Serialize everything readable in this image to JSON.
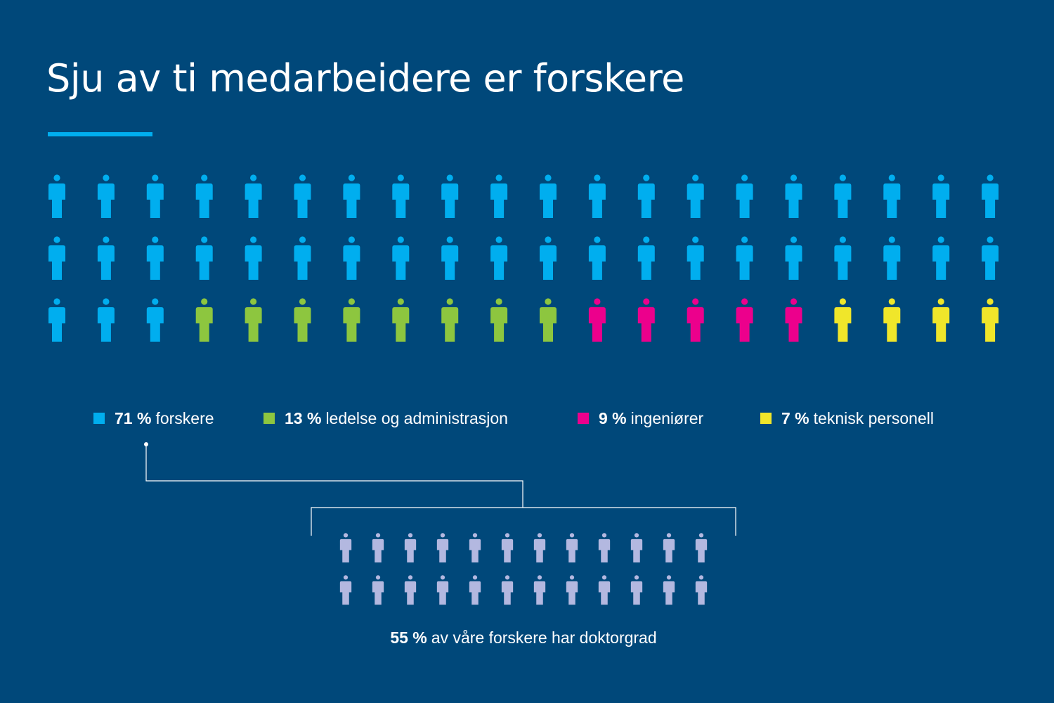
{
  "title": "Sju av ti medarbeidere er forskere",
  "chart_data": [
    {
      "type": "pictogram",
      "title": "Sju av ti medarbeidere er forskere",
      "total_icons": 60,
      "rows": 3,
      "icons_per_row": 20,
      "series": [
        {
          "name": "forskere",
          "value": 71,
          "unit": "%",
          "icons": 43,
          "color": "#00aeef"
        },
        {
          "name": "ledelse og administrasjon",
          "value": 13,
          "unit": "%",
          "icons": 8,
          "color": "#8dc63f"
        },
        {
          "name": "ingeniører",
          "value": 9,
          "unit": "%",
          "icons": 5,
          "color": "#ec008c"
        },
        {
          "name": "teknisk personell",
          "value": 7,
          "unit": "%",
          "icons": 4,
          "color": "#f0e62a"
        }
      ]
    },
    {
      "type": "pictogram",
      "total_icons": 24,
      "rows": 2,
      "icons_per_row": 12,
      "value": 55,
      "unit": "%",
      "color": "#b3b8e0"
    }
  ],
  "legend": [
    {
      "value": "71 %",
      "label": "forskere",
      "color": "#00aeef"
    },
    {
      "value": "13 %",
      "label": "ledelse og administrasjon",
      "color": "#8dc63f"
    },
    {
      "value": "9 %",
      "label": "ingeniører",
      "color": "#ec008c"
    },
    {
      "value": "7 %",
      "label": "teknisk personell",
      "color": "#f0e62a"
    }
  ],
  "phd": {
    "value": "55 %",
    "text": "av våre forskere har doktorgrad",
    "icon_color": "#b3b8e0"
  },
  "colors": {
    "background": "#00487a",
    "accent": "#00aeef",
    "connector": "#ffffff"
  }
}
